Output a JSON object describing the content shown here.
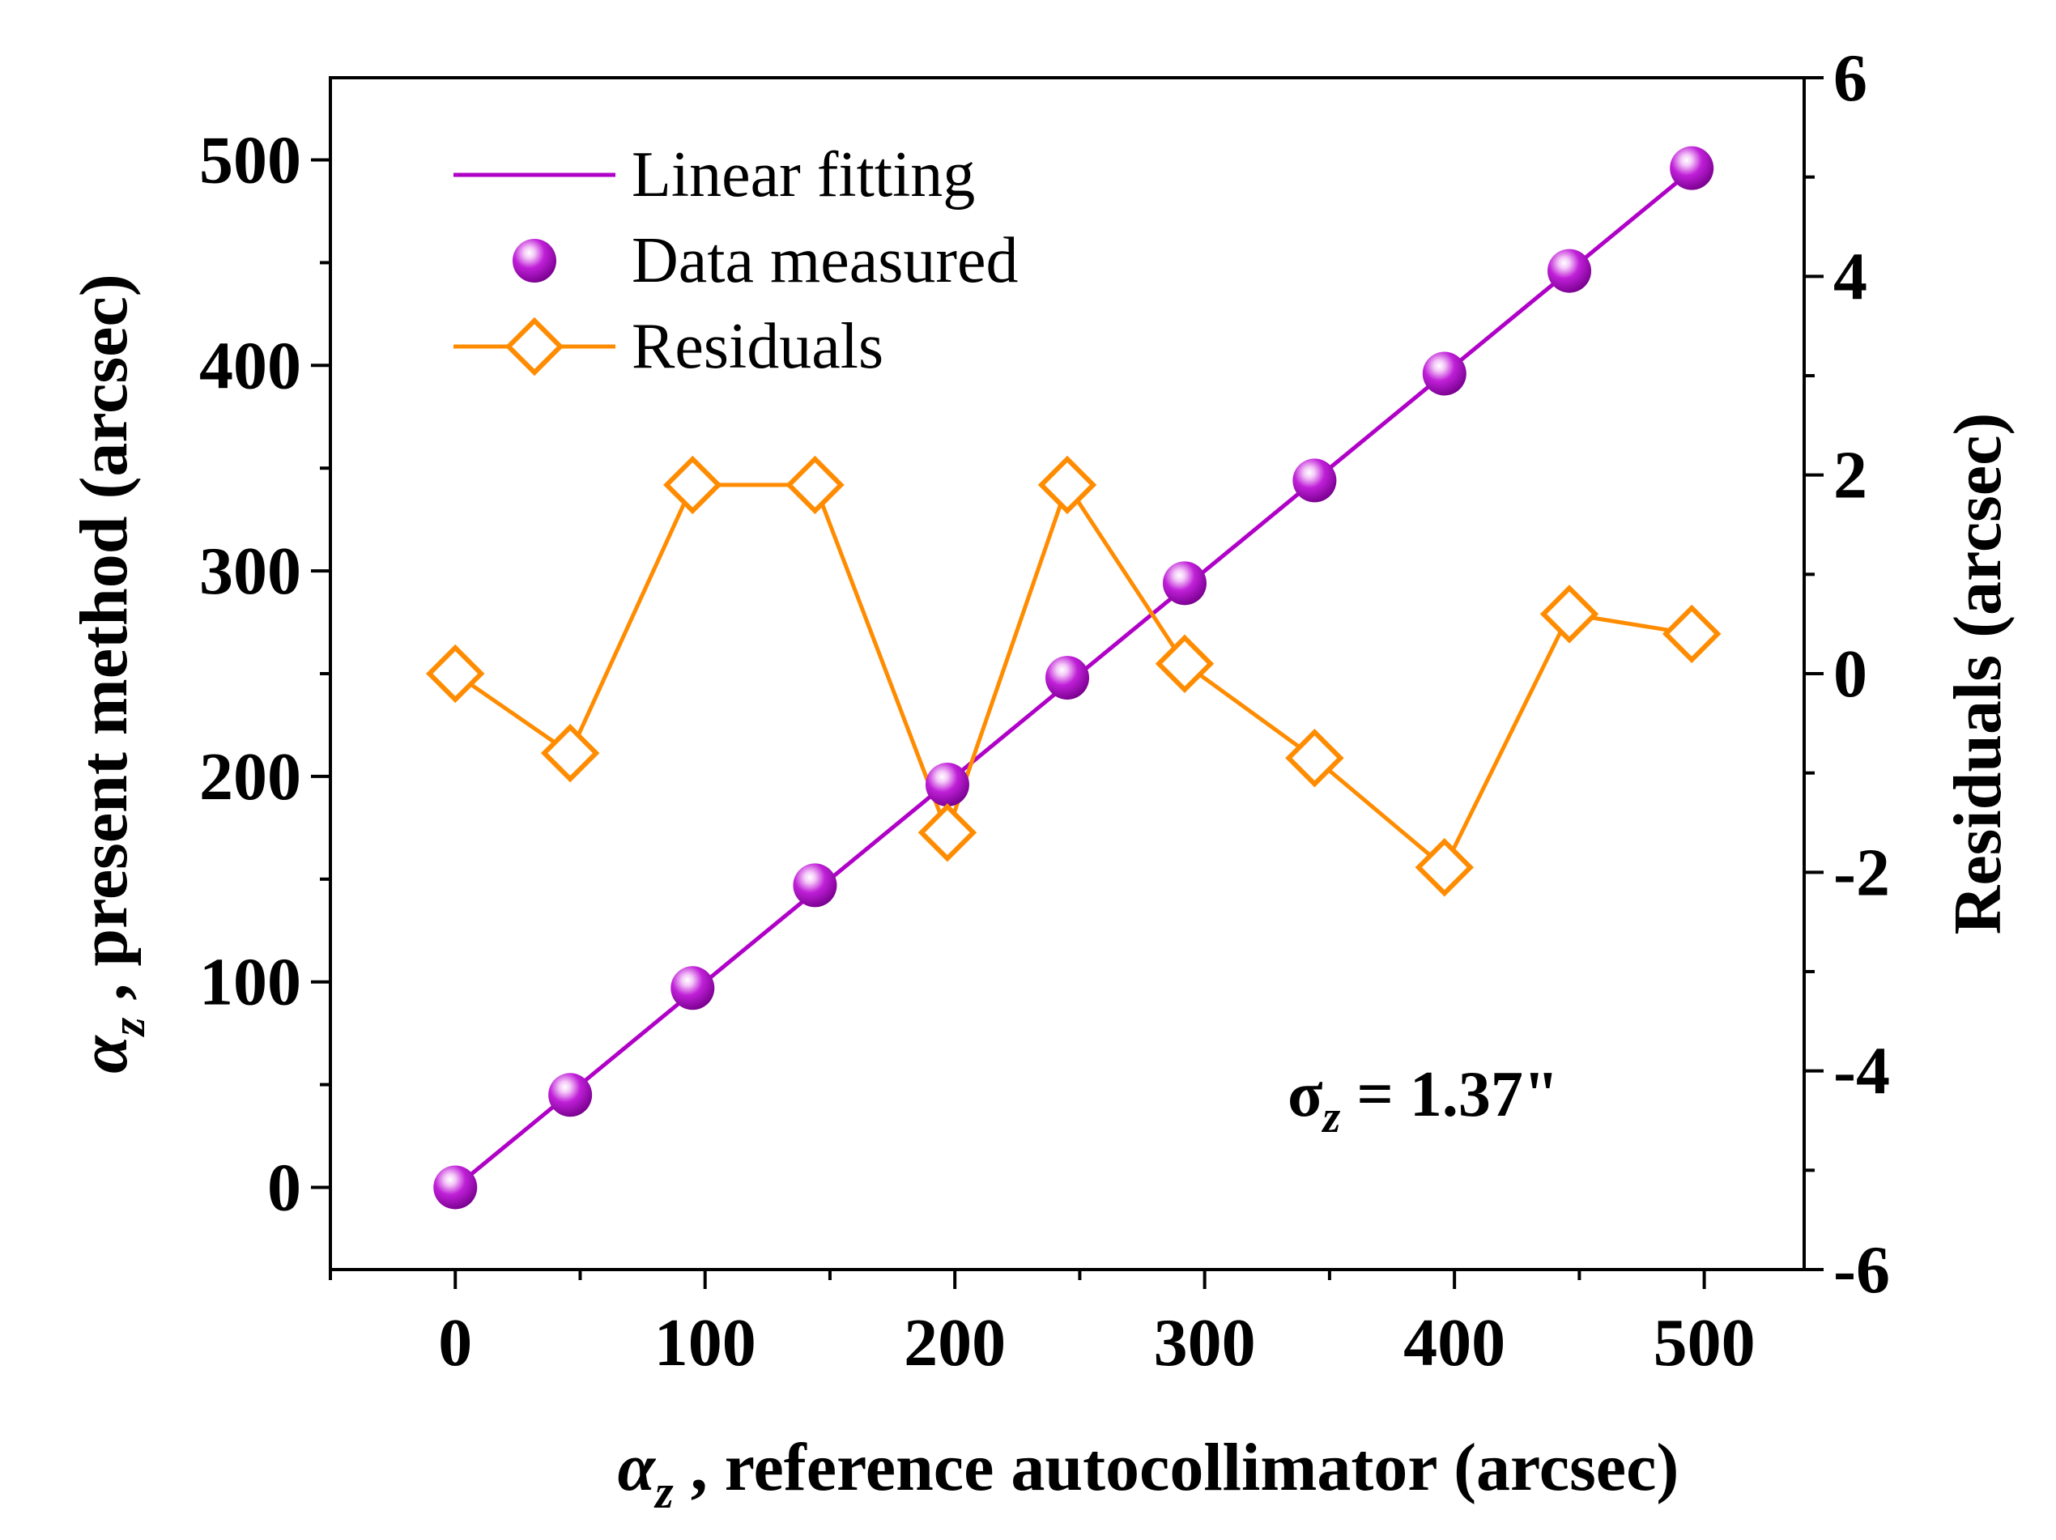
{
  "chart_data": {
    "type": "line+scatter",
    "x_axis": {
      "title_symbol": "α",
      "title_subscript": "z",
      "title_text": " , reference autocollimator (arcsec)",
      "range": [
        -50,
        540
      ],
      "ticks": [
        0,
        100,
        200,
        300,
        400,
        500
      ]
    },
    "y_left_axis": {
      "title_symbol": "α",
      "title_subscript": "z",
      "title_text": " , present method (arcsec)",
      "range": [
        -40,
        540
      ],
      "ticks": [
        0,
        100,
        200,
        300,
        400,
        500
      ]
    },
    "y_right_axis": {
      "title_text": "Residuals (arcsec)",
      "range": [
        -6,
        6
      ],
      "ticks": [
        -6,
        -4,
        -2,
        0,
        2,
        4,
        6
      ],
      "tick_labels": [
        "-6",
        "-4",
        "-2",
        "0",
        "2",
        "4",
        "6"
      ]
    },
    "series": [
      {
        "name": "Linear fitting",
        "kind": "line",
        "axis": "left",
        "color": "#b000c8",
        "x": [
          0,
          496
        ],
        "y": [
          0,
          496
        ]
      },
      {
        "name": "Data measured",
        "kind": "scatter",
        "axis": "left",
        "color": "#b000c8",
        "x": [
          0,
          46,
          95,
          144,
          197,
          245,
          292,
          344,
          396,
          446,
          495
        ],
        "y": [
          0,
          45,
          97,
          147,
          196,
          248,
          294,
          344,
          396,
          446,
          496
        ]
      },
      {
        "name": "Residuals",
        "kind": "line+diamond",
        "axis": "right",
        "color": "#ff8c00",
        "x": [
          0,
          46,
          95,
          144,
          197,
          245,
          292,
          344,
          396,
          446,
          495
        ],
        "y": [
          0,
          -0.8,
          1.9,
          1.9,
          -1.6,
          1.9,
          0.1,
          -0.85,
          -1.95,
          0.6,
          0.4
        ]
      }
    ],
    "legend": {
      "position": "top-left",
      "entries": [
        "Linear fitting",
        "Data measured",
        "Residuals"
      ]
    },
    "annotation": {
      "symbol": "σ",
      "subscript": "z",
      "text": " = 1.37\"",
      "position": "bottom-right"
    }
  }
}
